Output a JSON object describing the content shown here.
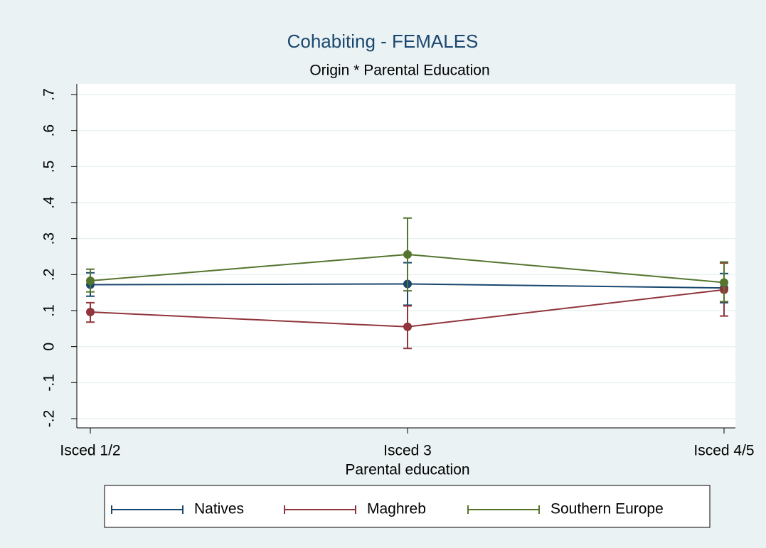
{
  "chart_data": {
    "type": "line",
    "title": "Cohabiting - FEMALES",
    "subtitle": "Origin * Parental Education",
    "x_label": "Parental education",
    "categories": [
      "Isced 1/2",
      "Isced 3",
      "Isced 4/5"
    ],
    "series": [
      {
        "name": "Natives",
        "color": "#1a476f",
        "values": [
          0.172,
          0.174,
          0.163
        ],
        "lower": [
          0.14,
          0.115,
          0.122
        ],
        "upper": [
          0.205,
          0.233,
          0.203
        ]
      },
      {
        "name": "Maghreb",
        "color": "#90353b",
        "values": [
          0.096,
          0.055,
          0.158
        ],
        "lower": [
          0.068,
          -0.005,
          0.085
        ],
        "upper": [
          0.122,
          0.113,
          0.232
        ]
      },
      {
        "name": "Southern Europe",
        "color": "#55752f",
        "values": [
          0.183,
          0.256,
          0.178
        ],
        "lower": [
          0.152,
          0.155,
          0.125
        ],
        "upper": [
          0.215,
          0.357,
          0.235
        ]
      }
    ],
    "ylim": [
      -0.2,
      0.7
    ],
    "yticks": [
      {
        "value": -0.2,
        "label": "-.2"
      },
      {
        "value": -0.1,
        "label": "-.1"
      },
      0,
      {
        "value": 0.1,
        "label": ".1"
      },
      {
        "value": 0.2,
        "label": ".2"
      },
      {
        "value": 0.3,
        "label": ".3"
      },
      {
        "value": 0.4,
        "label": ".4"
      },
      {
        "value": 0.5,
        "label": ".5"
      },
      {
        "value": 0.6,
        "label": ".6"
      },
      {
        "value": 0.7,
        "label": ".7"
      }
    ],
    "grid": true
  }
}
